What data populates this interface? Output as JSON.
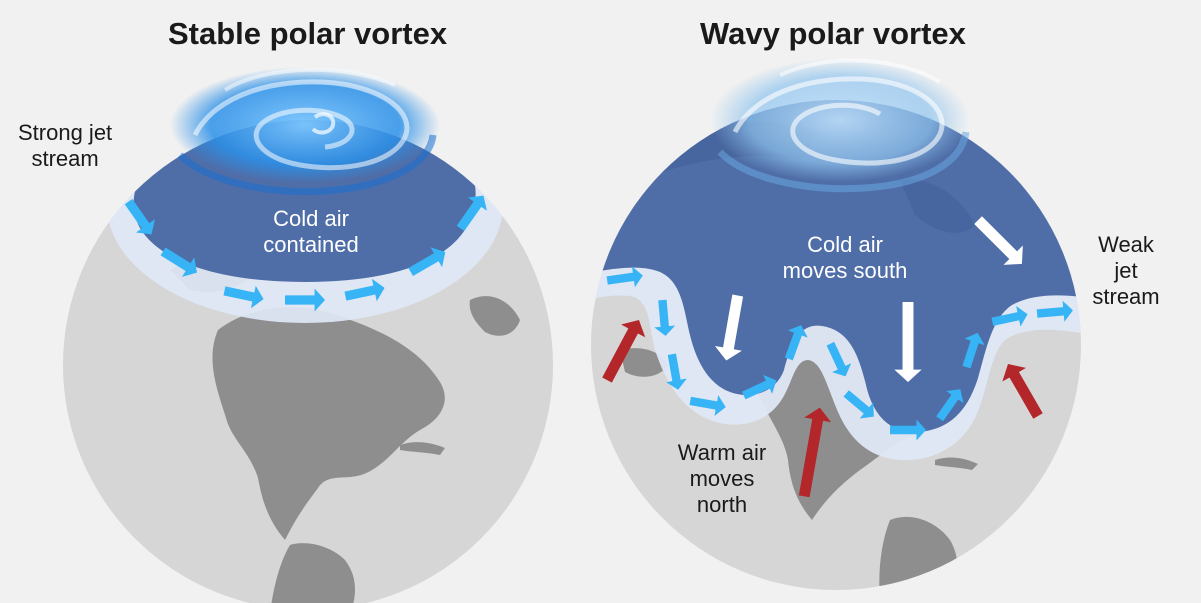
{
  "panels": {
    "stable": {
      "title": "Stable polar vortex",
      "jet_label": [
        "Strong jet",
        "stream"
      ],
      "cold_label": [
        "Cold air",
        "contained"
      ]
    },
    "wavy": {
      "title": "Wavy polar vortex",
      "cold_label": [
        "Cold air",
        "moves south"
      ],
      "jet_label": [
        "Weak",
        "jet",
        "stream"
      ],
      "warm_label": [
        "Warm air",
        "moves",
        "north"
      ]
    }
  },
  "colors": {
    "background": "#f1f1f1",
    "globe_ocean": "#d6d6d6",
    "land": "#8e8e8e",
    "polar_cold_air": "#4f6ea8",
    "jet_band": "#dfe8f6",
    "jet_arrows": "#37b4f5",
    "cold_air_arrows": "#ffffff",
    "warm_air_arrows": "#b3262a",
    "vortex_swirl": "#2b90e8"
  },
  "icons": [
    "jet-stream-arrow-icon",
    "cold-air-arrow-icon",
    "warm-air-arrow-icon",
    "vortex-swirl-icon"
  ]
}
